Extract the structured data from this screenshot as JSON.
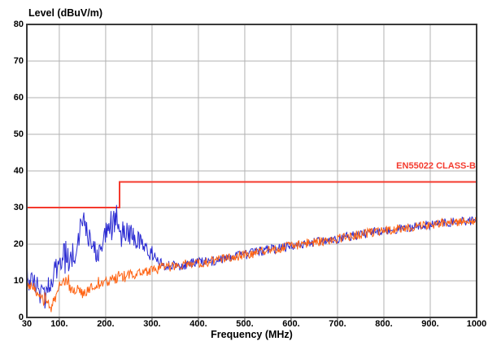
{
  "chart_data": {
    "type": "line",
    "title": "",
    "xlabel": "Frequency (MHz)",
    "ylabel": "Level (dBuV/m)",
    "xlim": [
      30,
      1000
    ],
    "ylim": [
      0,
      80
    ],
    "x_scale": "linear",
    "grid": true,
    "x_ticks": [
      {
        "value": 30,
        "label": "30"
      },
      {
        "value": 100,
        "label": "100."
      },
      {
        "value": 200,
        "label": "200."
      },
      {
        "value": 300,
        "label": "300."
      },
      {
        "value": 400,
        "label": "400."
      },
      {
        "value": 500,
        "label": "500."
      },
      {
        "value": 600,
        "label": "600."
      },
      {
        "value": 700,
        "label": "700."
      },
      {
        "value": 800,
        "label": "800."
      },
      {
        "value": 900,
        "label": "900."
      },
      {
        "value": 1000,
        "label": "1000"
      }
    ],
    "y_ticks": [
      {
        "value": 80,
        "label": "80"
      },
      {
        "value": 70,
        "label": "70"
      },
      {
        "value": 60,
        "label": "60"
      },
      {
        "value": 50,
        "label": "50"
      },
      {
        "value": 40,
        "label": "40"
      },
      {
        "value": 30,
        "label": "30"
      },
      {
        "value": 20,
        "label": "20"
      },
      {
        "value": 10,
        "label": "10"
      },
      {
        "value": 0,
        "label": "0"
      }
    ],
    "limit_line": {
      "label": "EN55022 CLASS-B",
      "color": "#f43a2e",
      "points": [
        [
          30,
          30
        ],
        [
          230,
          30
        ],
        [
          230,
          37
        ],
        [
          1000,
          37
        ]
      ]
    },
    "series": [
      {
        "name": "blue-trace",
        "color": "#2b2bd2",
        "noise_db": [
          [
            30,
            3.6
          ],
          [
            240,
            3.2
          ],
          [
            300,
            2.2
          ],
          [
            335,
            1.4
          ],
          [
            1000,
            1.2
          ]
        ],
        "spike_chance": 0.1,
        "spike_gain": 1.9,
        "spike_below_mhz": 260,
        "mean_points": [
          [
            30,
            12
          ],
          [
            35,
            10.5
          ],
          [
            40,
            10.5
          ],
          [
            45,
            9.5
          ],
          [
            50,
            8.5
          ],
          [
            55,
            7.5
          ],
          [
            60,
            6.5
          ],
          [
            65,
            6
          ],
          [
            70,
            5.5
          ],
          [
            75,
            7
          ],
          [
            80,
            9
          ],
          [
            85,
            11
          ],
          [
            90,
            13
          ],
          [
            95,
            14
          ],
          [
            100,
            15
          ],
          [
            105,
            16
          ],
          [
            110,
            17
          ],
          [
            115,
            16.2
          ],
          [
            120,
            16
          ],
          [
            125,
            16.5
          ],
          [
            130,
            17.5
          ],
          [
            135,
            19
          ],
          [
            140,
            21
          ],
          [
            145,
            24
          ],
          [
            150,
            27
          ],
          [
            155,
            26
          ],
          [
            160,
            24
          ],
          [
            165,
            21.5
          ],
          [
            170,
            19.5
          ],
          [
            175,
            18.2
          ],
          [
            180,
            18
          ],
          [
            185,
            18.2
          ],
          [
            190,
            18.6
          ],
          [
            195,
            20
          ],
          [
            200,
            22.5
          ],
          [
            205,
            25
          ],
          [
            210,
            26.5
          ],
          [
            215,
            26.2
          ],
          [
            220,
            25.6
          ],
          [
            225,
            25.2
          ],
          [
            230,
            25
          ],
          [
            240,
            24
          ],
          [
            250,
            23
          ],
          [
            260,
            22
          ],
          [
            270,
            21
          ],
          [
            280,
            19.5
          ],
          [
            290,
            18.5
          ],
          [
            300,
            17.3
          ],
          [
            310,
            15.7
          ],
          [
            320,
            14.6
          ],
          [
            330,
            14.1
          ],
          [
            340,
            13.9
          ],
          [
            360,
            14.2
          ],
          [
            380,
            14.6
          ],
          [
            400,
            15
          ],
          [
            420,
            15.3
          ],
          [
            440,
            15.7
          ],
          [
            460,
            16.1
          ],
          [
            480,
            16.6
          ],
          [
            500,
            17.1
          ],
          [
            520,
            17.6
          ],
          [
            540,
            18.1
          ],
          [
            560,
            18.6
          ],
          [
            580,
            19
          ],
          [
            600,
            19.4
          ],
          [
            620,
            19.9
          ],
          [
            640,
            20.3
          ],
          [
            660,
            20.7
          ],
          [
            680,
            21.1
          ],
          [
            700,
            21.6
          ],
          [
            720,
            22
          ],
          [
            740,
            22.4
          ],
          [
            760,
            22.9
          ],
          [
            780,
            23.3
          ],
          [
            800,
            23.7
          ],
          [
            820,
            24
          ],
          [
            840,
            24.3
          ],
          [
            860,
            24.7
          ],
          [
            880,
            25
          ],
          [
            900,
            25.3
          ],
          [
            920,
            25.7
          ],
          [
            940,
            26
          ],
          [
            960,
            26.1
          ],
          [
            980,
            26.3
          ],
          [
            1000,
            26.4
          ]
        ]
      },
      {
        "name": "orange-trace",
        "color": "#ff6414",
        "noise_db": [
          [
            30,
            1.6
          ],
          [
            330,
            1.4
          ],
          [
            1000,
            1.2
          ]
        ],
        "spike_chance": 0.05,
        "spike_gain": 1.8,
        "spike_below_mhz": 260,
        "mean_points": [
          [
            30,
            8.5
          ],
          [
            40,
            9
          ],
          [
            50,
            7.5
          ],
          [
            55,
            6.5
          ],
          [
            60,
            5.5
          ],
          [
            65,
            5
          ],
          [
            70,
            4.5
          ],
          [
            75,
            4.2
          ],
          [
            80,
            3.8
          ],
          [
            85,
            3.5
          ],
          [
            90,
            4.5
          ],
          [
            95,
            6.5
          ],
          [
            100,
            8.5
          ],
          [
            105,
            9.5
          ],
          [
            110,
            10
          ],
          [
            115,
            9.8
          ],
          [
            120,
            9
          ],
          [
            125,
            8
          ],
          [
            130,
            7.3
          ],
          [
            140,
            7
          ],
          [
            150,
            6.8
          ],
          [
            160,
            7.2
          ],
          [
            170,
            8
          ],
          [
            180,
            8.6
          ],
          [
            190,
            9
          ],
          [
            200,
            9.6
          ],
          [
            210,
            10.2
          ],
          [
            220,
            10.6
          ],
          [
            230,
            11
          ],
          [
            240,
            11.4
          ],
          [
            250,
            11.6
          ],
          [
            260,
            11.9
          ],
          [
            270,
            12.1
          ],
          [
            280,
            12.4
          ],
          [
            290,
            12.7
          ],
          [
            300,
            13
          ],
          [
            310,
            13.2
          ],
          [
            320,
            13.5
          ],
          [
            330,
            13.7
          ],
          [
            340,
            13.9
          ],
          [
            360,
            14.2
          ],
          [
            380,
            14.6
          ],
          [
            400,
            15
          ],
          [
            420,
            15.3
          ],
          [
            440,
            15.7
          ],
          [
            460,
            16.1
          ],
          [
            480,
            16.6
          ],
          [
            500,
            17.1
          ],
          [
            520,
            17.6
          ],
          [
            540,
            18.1
          ],
          [
            560,
            18.6
          ],
          [
            580,
            19
          ],
          [
            600,
            19.4
          ],
          [
            620,
            19.9
          ],
          [
            640,
            20.3
          ],
          [
            660,
            20.7
          ],
          [
            680,
            21.1
          ],
          [
            700,
            21.6
          ],
          [
            720,
            22
          ],
          [
            740,
            22.4
          ],
          [
            760,
            22.9
          ],
          [
            780,
            23.3
          ],
          [
            800,
            23.7
          ],
          [
            820,
            24
          ],
          [
            840,
            24.3
          ],
          [
            860,
            24.7
          ],
          [
            880,
            25
          ],
          [
            900,
            25.3
          ],
          [
            920,
            25.7
          ],
          [
            940,
            26
          ],
          [
            960,
            26.1
          ],
          [
            980,
            26.3
          ],
          [
            1000,
            26.4
          ]
        ]
      }
    ]
  },
  "colors": {
    "grid": "#b2b2b2",
    "frame": "#3a3a3a",
    "tick": "#3a3a3a",
    "background": "#ffffff",
    "text": "#000000"
  }
}
